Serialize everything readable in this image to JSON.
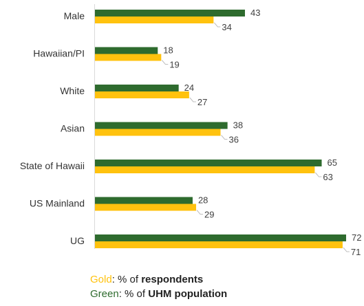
{
  "chart_data": {
    "type": "bar",
    "orientation": "horizontal",
    "categories": [
      "Male",
      "Hawaiian/PI",
      "White",
      "Asian",
      "State of Hawaii",
      "US Mainland",
      "UG"
    ],
    "series": [
      {
        "key": "population",
        "color": "#2e6b2e",
        "values": [
          43,
          18,
          24,
          38,
          65,
          28,
          72
        ]
      },
      {
        "key": "respondents",
        "color": "#ffc20e",
        "values": [
          34,
          19,
          27,
          36,
          63,
          29,
          71
        ]
      }
    ],
    "xlim": [
      0,
      72
    ],
    "grid": false,
    "data_labels": true,
    "legend_position": "bottom"
  },
  "legend": {
    "gold": {
      "word": "Gold",
      "sep": ": % of ",
      "bold": "respondents",
      "color": "#ffc20e"
    },
    "green": {
      "word": "Green",
      "sep": ": % of ",
      "bold": "UHM population",
      "color": "#2e6b2e"
    }
  }
}
